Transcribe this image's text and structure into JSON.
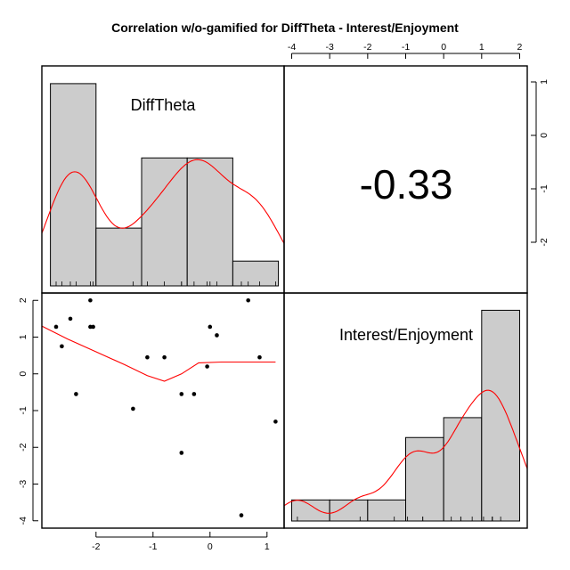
{
  "chart_data": {
    "type": "pairs",
    "title": "Correlation w/o-gamified for DiffTheta - Interest/Enjoyment",
    "variables": [
      "DiffTheta",
      "Interest/Enjoyment"
    ],
    "correlation_text": "-0.33",
    "panels": {
      "diag_difftheta": {
        "type": "bar",
        "label": "DiffTheta",
        "bin_edges": [
          -2.8,
          -2.0,
          -1.2,
          -0.4,
          0.4,
          1.2
        ],
        "densities": [
          0.49,
          0.14,
          0.31,
          0.31,
          0.06
        ],
        "density_max": 0.52,
        "xlim": [
          -2.95,
          1.3
        ],
        "rug": [
          -2.7,
          -2.6,
          -2.45,
          -2.35,
          -2.1,
          -2.05,
          -1.35,
          -1.1,
          -0.8,
          -0.5,
          -0.5,
          -0.28,
          -0.05,
          0.0,
          0.12,
          0.55,
          0.67,
          0.87,
          1.15
        ]
      },
      "diag_interest": {
        "type": "bar",
        "label": "Interest/Enjoyment",
        "bin_edges": [
          -4,
          -3,
          -2,
          -1,
          0,
          1,
          2
        ],
        "densities": [
          0.053,
          0.053,
          0.053,
          0.21,
          0.26,
          0.53
        ],
        "density_max": 0.56,
        "xlim": [
          -4.2,
          2.2
        ],
        "rug": [
          -3.85,
          -2.2,
          -1.3,
          -0.95,
          -0.55,
          -0.55,
          0.2,
          0.45,
          0.45,
          0.75,
          1.05,
          1.28,
          1.28,
          1.28,
          1.5,
          2.0,
          2.0
        ]
      },
      "scatter": {
        "type": "scatter",
        "xlim": [
          -2.95,
          1.3
        ],
        "ylim": [
          -4.2,
          2.2
        ],
        "x": [
          -2.7,
          -2.6,
          -2.45,
          -2.35,
          -2.1,
          -2.1,
          -2.05,
          -1.35,
          -1.1,
          -0.8,
          -0.5,
          -0.5,
          -0.28,
          -0.05,
          0.0,
          0.12,
          0.55,
          0.67,
          0.87,
          1.15
        ],
        "y": [
          1.28,
          0.75,
          1.5,
          -0.55,
          2.0,
          1.28,
          1.28,
          -0.95,
          0.45,
          0.45,
          -0.55,
          -2.15,
          -0.55,
          0.2,
          1.28,
          1.05,
          -3.85,
          2.0,
          0.45,
          -1.3
        ],
        "loess": {
          "x": [
            -2.95,
            -2.5,
            -2.0,
            -1.5,
            -1.1,
            -0.8,
            -0.5,
            -0.2,
            0.2,
            0.6,
            1.15
          ],
          "y": [
            1.3,
            0.95,
            0.6,
            0.25,
            -0.05,
            -0.2,
            0.0,
            0.3,
            0.32,
            0.32,
            0.32
          ]
        }
      }
    },
    "axes": {
      "top": {
        "ticks": [
          -4,
          -3,
          -2,
          -1,
          0,
          1,
          2
        ],
        "labels": [
          "-4",
          "-3",
          "-2",
          "-1",
          "0",
          "1",
          "2"
        ]
      },
      "right": {
        "ticks": [
          1,
          0,
          -1,
          -2
        ],
        "labels": [
          "1",
          "0",
          "-1",
          "-2"
        ]
      },
      "left": {
        "ticks": [
          2,
          1,
          0,
          -1,
          -2,
          -3,
          -4
        ],
        "labels": [
          "2",
          "1",
          "0",
          "-1",
          "-2",
          "-3",
          "-4"
        ]
      },
      "bottom": {
        "ticks": [
          -2,
          -1,
          0,
          1
        ],
        "labels": [
          "-2",
          "-1",
          "0",
          "1"
        ]
      }
    },
    "right_axis_ylim": [
      -2.95,
      1.3
    ],
    "grid": false
  }
}
